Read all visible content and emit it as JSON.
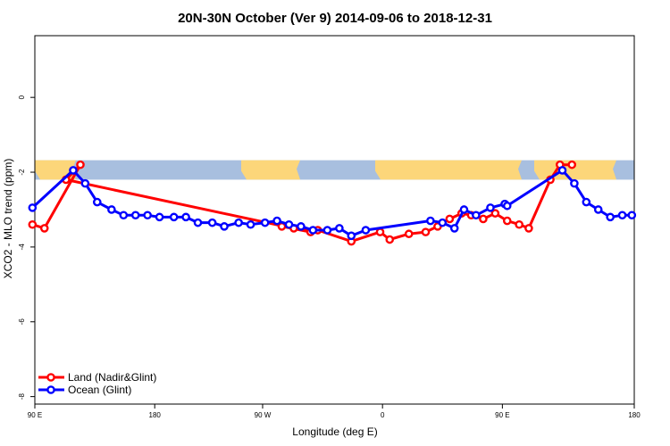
{
  "chart_data": {
    "type": "line",
    "title": "20N-30N October (Ver 9)   2014-09-06 to 2018-12-31",
    "xlabel": "Longitude (deg E)",
    "ylabel": "XCO2 - MLO trend (ppm)",
    "xlim": [
      -270,
      -20
    ],
    "ylim": [
      -8.2,
      1.65
    ],
    "x_ticks": [
      {
        "value": -270,
        "label": "90 E"
      },
      {
        "value": -220,
        "label": "180"
      },
      {
        "value": -175,
        "label": "90 W"
      },
      {
        "value": -125,
        "label": "0"
      },
      {
        "value": -75,
        "label": "90 E"
      },
      {
        "value": -20,
        "label": "180"
      }
    ],
    "y_ticks": [
      {
        "value": 0,
        "label": "0"
      },
      {
        "value": -2,
        "label": "-2"
      },
      {
        "value": -4,
        "label": "-4"
      },
      {
        "value": -6,
        "label": "-6"
      },
      {
        "value": -8,
        "label": "-8"
      }
    ],
    "grid": false,
    "legend_position": "bottom-left",
    "map_strip": {
      "y_top": -1.68,
      "y_bottom": -2.2,
      "ocean_color": "#a8bfdf",
      "land_color": "#fcd67a"
    },
    "series": [
      {
        "name": "Land (Nadir&Glint)",
        "color": "#ff0000",
        "x": [
          -271,
          -266,
          -251,
          -257,
          -155,
          -167,
          -162,
          -152,
          -138,
          -126,
          -122,
          -114,
          -107,
          -102,
          -97,
          -92,
          -88,
          -83,
          -78,
          -73,
          -68,
          -64,
          -55,
          -51,
          -46
        ],
        "y": [
          -3.4,
          -3.5,
          -1.8,
          -2.2,
          -3.6,
          -3.45,
          -3.5,
          -3.55,
          -3.85,
          -3.6,
          -3.8,
          -3.65,
          -3.6,
          -3.45,
          -3.25,
          -3.1,
          -3.15,
          -3.25,
          -3.1,
          -3.3,
          -3.4,
          -3.5,
          -2.2,
          -1.8,
          -1.8
        ]
      },
      {
        "name": "Ocean (Glint)",
        "color": "#0000ff",
        "x": [
          -271,
          -254,
          -249,
          -244,
          -238,
          -233,
          -228,
          -223,
          -218,
          -212,
          -207,
          -202,
          -196,
          -191,
          -185,
          -180,
          -174,
          -169,
          -164,
          -159,
          -154,
          -148,
          -143,
          -138,
          -132,
          -105,
          -100,
          -95,
          -91,
          -86,
          -80,
          -74,
          -73,
          -50,
          -45,
          -40,
          -35,
          -30,
          -25,
          -21
        ],
        "y": [
          -2.95,
          -1.95,
          -2.3,
          -2.8,
          -3.0,
          -3.15,
          -3.15,
          -3.15,
          -3.2,
          -3.2,
          -3.2,
          -3.35,
          -3.35,
          -3.45,
          -3.35,
          -3.4,
          -3.35,
          -3.3,
          -3.4,
          -3.45,
          -3.55,
          -3.55,
          -3.5,
          -3.7,
          -3.55,
          -3.3,
          -3.35,
          -3.5,
          -3.0,
          -3.15,
          -2.95,
          -2.85,
          -2.9,
          -1.95,
          -2.3,
          -2.8,
          -3.0,
          -3.2,
          -3.15,
          -3.15
        ]
      }
    ]
  }
}
